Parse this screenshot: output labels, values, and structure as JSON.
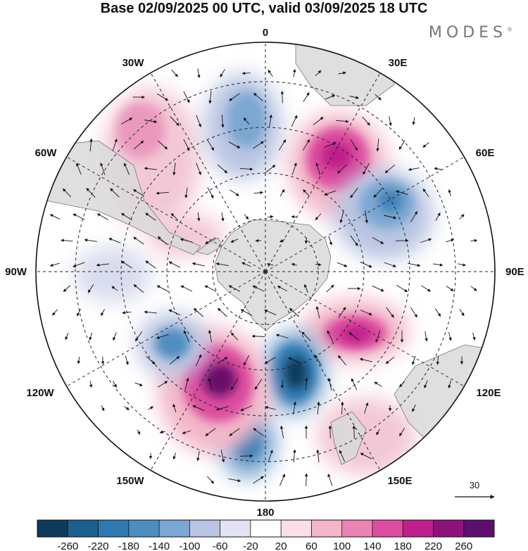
{
  "title": "Base 02/09/2025 00 UTC, valid 03/09/2025 18 UTC",
  "brand": "MODES",
  "brand_mark": "®",
  "map": {
    "projection": "south-polar-stereographic",
    "longitude_labels": {
      "top": "0",
      "bottom": "180",
      "left": "90W",
      "right": "90E",
      "upper_left_1": "30W",
      "upper_left_2": "60W",
      "upper_right_1": "30E",
      "upper_right_2": "60E",
      "lower_left_1": "120W",
      "lower_left_2": "150W",
      "lower_right_1": "120E",
      "lower_right_2": "150E"
    },
    "reference_vector_label": "30",
    "colors": {
      "ocean": "#ffffff",
      "land": "#dedede",
      "grid": "#222222",
      "blue_strong": "#1d5f8f",
      "blue_mid": "#4f8dbf",
      "blue_light": "#b9c5e2",
      "pink_strong": "#6a0d6b",
      "pink_mid": "#d0409a",
      "pink_light": "#f3c8d6"
    },
    "anomaly_centers": [
      {
        "sign": "positive",
        "strength": 0.55,
        "region": "South Atlantic near 30W"
      },
      {
        "sign": "negative",
        "strength": 0.45,
        "region": "Weddell Sea near 0"
      },
      {
        "sign": "positive",
        "strength": 0.9,
        "region": "South of Africa 30E-40E"
      },
      {
        "sign": "negative",
        "strength": 0.75,
        "region": "Southern Indian Ocean 60E"
      },
      {
        "sign": "positive",
        "strength": 0.85,
        "region": "South of Australia 110E"
      },
      {
        "sign": "negative",
        "strength": 1.0,
        "region": "Ross Sea 170E"
      },
      {
        "sign": "negative",
        "strength": 0.7,
        "region": "South Pacific near 180"
      },
      {
        "sign": "positive",
        "strength": 1.0,
        "region": "South Pacific 145W"
      },
      {
        "sign": "negative",
        "strength": 0.6,
        "region": "Amundsen Sea 120W"
      },
      {
        "sign": "negative",
        "strength": 0.3,
        "region": "Southeast Pacific 90W"
      },
      {
        "sign": "positive",
        "strength": 0.45,
        "region": "Drake Passage 60W"
      }
    ]
  },
  "colorbar": {
    "colors": [
      "#0e3a5c",
      "#1d5f8f",
      "#2f79b0",
      "#4f8dbf",
      "#7ca7d2",
      "#b9c5e2",
      "#e2e3f2",
      "#ffffff",
      "#fbdfe6",
      "#f3b6c8",
      "#ea84b3",
      "#dc4d9f",
      "#bf1f8a",
      "#8e127c",
      "#5c0f6e"
    ],
    "tick_labels": [
      "-260",
      "-220",
      "-180",
      "-140",
      "-100",
      "-60",
      "-20",
      "20",
      "60",
      "100",
      "140",
      "180",
      "220",
      "260"
    ]
  }
}
